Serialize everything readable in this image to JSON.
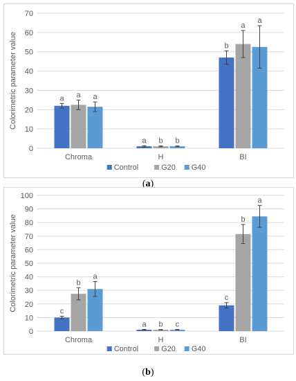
{
  "figure": {
    "caption_a": "(a)",
    "caption_a_letter": "a",
    "caption_b": "(b)",
    "caption_b_letter": "b"
  },
  "chart_data": [
    {
      "panel": "a",
      "type": "bar",
      "categories": [
        "Chroma",
        "H",
        "BI"
      ],
      "ylabel": "Colorimetric parameter value",
      "xlabel": "",
      "title": "",
      "ylim": [
        0,
        70
      ],
      "yticks": [
        0,
        10,
        20,
        30,
        40,
        50,
        60,
        70
      ],
      "grid": true,
      "legend_position": "bottom-center",
      "series": [
        {
          "name": "Control",
          "color": "#4472c4",
          "values": [
            22,
            1,
            47
          ],
          "errors": [
            1.2,
            0.3,
            3.5
          ],
          "letters": [
            "a",
            "a",
            "b"
          ]
        },
        {
          "name": "G20",
          "color": "#a5a5a5",
          "values": [
            22.5,
            1,
            54
          ],
          "errors": [
            2.5,
            0.2,
            7
          ],
          "letters": [
            "a",
            "b",
            "a"
          ]
        },
        {
          "name": "G40",
          "color": "#5b9bd5",
          "values": [
            21.5,
            1,
            52.5
          ],
          "errors": [
            2.5,
            0.2,
            11
          ],
          "letters": [
            "a",
            "b",
            "a"
          ]
        }
      ]
    },
    {
      "panel": "b",
      "type": "bar",
      "categories": [
        "Chroma",
        "H",
        "BI"
      ],
      "ylabel": "Colorimetric parameter value",
      "xlabel": "",
      "title": "",
      "ylim": [
        0,
        100
      ],
      "yticks": [
        0,
        10,
        20,
        30,
        40,
        50,
        60,
        70,
        80,
        90,
        100
      ],
      "grid": true,
      "legend_position": "bottom-center",
      "series": [
        {
          "name": "Control",
          "color": "#4472c4",
          "values": [
            10,
            1,
            19
          ],
          "errors": [
            1,
            0.3,
            2
          ],
          "letters": [
            "c",
            "a",
            "c"
          ]
        },
        {
          "name": "G20",
          "color": "#a5a5a5",
          "values": [
            27.5,
            1,
            71.5
          ],
          "errors": [
            4.5,
            0.2,
            7
          ],
          "letters": [
            "b",
            "b",
            "b"
          ]
        },
        {
          "name": "G40",
          "color": "#5b9bd5",
          "values": [
            31,
            1,
            84.5
          ],
          "errors": [
            5.5,
            0.2,
            8
          ],
          "letters": [
            "a",
            "c",
            "a"
          ]
        }
      ]
    }
  ]
}
